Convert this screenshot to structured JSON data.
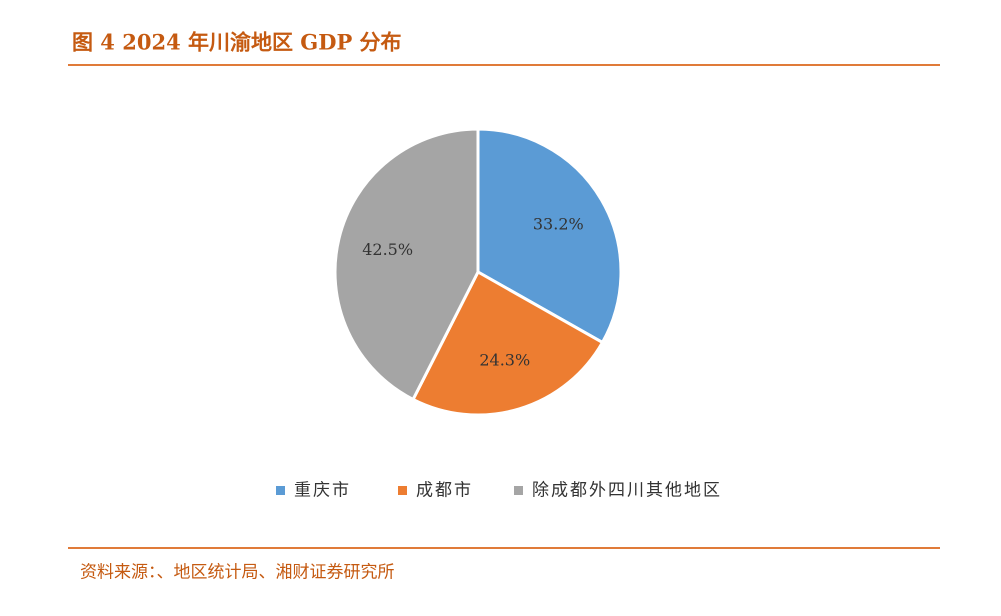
{
  "chart_data": {
    "type": "pie",
    "title": "图 4 2024 年川渝地区 GDP 分布",
    "categories": [
      "重庆市",
      "成都市",
      "除成都外四川其他地区"
    ],
    "values": [
      33.2,
      24.3,
      42.5
    ],
    "value_labels": [
      "33.2%",
      "24.3%",
      "42.5%"
    ],
    "colors": [
      "#5b9bd5",
      "#ed7d31",
      "#a5a5a5"
    ],
    "legend": "bottom",
    "source": "资料来源：、地区统计局、湘财证券研究所"
  }
}
